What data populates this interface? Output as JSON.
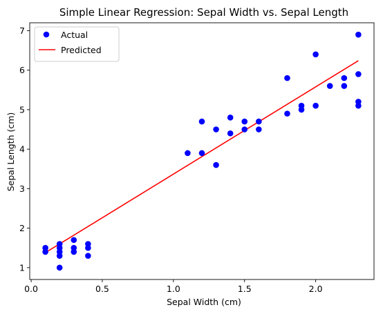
{
  "chart_data": {
    "type": "scatter",
    "title": "Simple Linear Regression: Sepal Width vs. Sepal Length",
    "xlabel": "Sepal Width (cm)",
    "ylabel": "Sepal Length (cm)",
    "xlim": [
      -0.01,
      2.41
    ],
    "ylim": [
      0.7,
      7.2
    ],
    "xticks": [
      0.0,
      0.5,
      1.0,
      1.5,
      2.0
    ],
    "xtick_labels": [
      "0.0",
      "0.5",
      "1.0",
      "1.5",
      "2.0"
    ],
    "yticks": [
      1,
      2,
      3,
      4,
      5,
      6,
      7
    ],
    "ytick_labels": [
      "1",
      "2",
      "3",
      "4",
      "5",
      "6",
      "7"
    ],
    "grid": false,
    "legend": {
      "placement": "top-left",
      "entries": [
        "Actual",
        "Predicted"
      ]
    },
    "series": [
      {
        "name": "Actual",
        "kind": "scatter",
        "color": "#0000ff",
        "points": [
          [
            0.1,
            1.5
          ],
          [
            0.1,
            1.4
          ],
          [
            0.2,
            1.6
          ],
          [
            0.2,
            1.5
          ],
          [
            0.2,
            1.4
          ],
          [
            0.2,
            1.3
          ],
          [
            0.2,
            1.0
          ],
          [
            0.3,
            1.7
          ],
          [
            0.3,
            1.5
          ],
          [
            0.3,
            1.4
          ],
          [
            0.4,
            1.6
          ],
          [
            0.4,
            1.5
          ],
          [
            0.4,
            1.3
          ],
          [
            1.1,
            3.9
          ],
          [
            1.2,
            4.7
          ],
          [
            1.2,
            3.9
          ],
          [
            1.3,
            4.5
          ],
          [
            1.3,
            3.6
          ],
          [
            1.4,
            4.8
          ],
          [
            1.4,
            4.4
          ],
          [
            1.5,
            4.7
          ],
          [
            1.5,
            4.5
          ],
          [
            1.6,
            4.7
          ],
          [
            1.6,
            4.5
          ],
          [
            1.8,
            5.8
          ],
          [
            1.8,
            4.9
          ],
          [
            1.9,
            5.1
          ],
          [
            1.9,
            5.0
          ],
          [
            2.0,
            6.4
          ],
          [
            2.0,
            5.1
          ],
          [
            2.1,
            5.6
          ],
          [
            2.2,
            5.8
          ],
          [
            2.2,
            5.6
          ],
          [
            2.3,
            6.9
          ],
          [
            2.3,
            5.9
          ],
          [
            2.3,
            5.2
          ],
          [
            2.3,
            5.1
          ]
        ]
      },
      {
        "name": "Predicted",
        "kind": "line",
        "color": "#ff0000",
        "points": [
          [
            0.1,
            1.38
          ],
          [
            2.3,
            6.24
          ]
        ]
      }
    ]
  }
}
